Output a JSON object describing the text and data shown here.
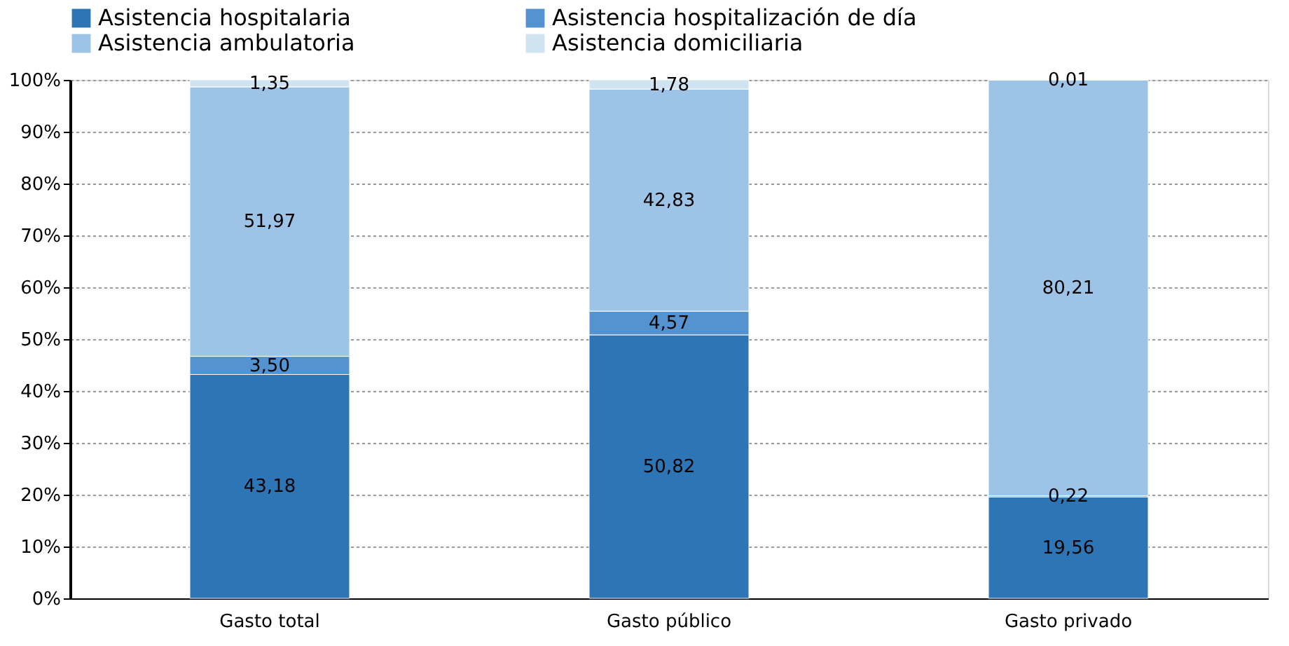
{
  "chart_data": {
    "type": "bar",
    "stacked": true,
    "categories": [
      "Gasto total",
      "Gasto público",
      "Gasto privado"
    ],
    "series": [
      {
        "name": "Asistencia hospitalaria",
        "color": "#2e75b6",
        "values": [
          43.18,
          50.82,
          19.56
        ],
        "value_labels": [
          "43,18",
          "50,82",
          "19,56"
        ]
      },
      {
        "name": "Asistencia hospitalización de día",
        "color": "#5593d0",
        "values": [
          3.5,
          4.57,
          0.22
        ],
        "value_labels": [
          "3,50",
          "4,57",
          "0,22"
        ]
      },
      {
        "name": "Asistencia ambulatoria",
        "color": "#9dc3e6",
        "values": [
          51.97,
          42.83,
          80.21
        ],
        "value_labels": [
          "51,97",
          "42,83",
          "80,21"
        ]
      },
      {
        "name": "Asistencia domiciliaria",
        "color": "#cfe3f1",
        "values": [
          1.35,
          1.78,
          0.01
        ],
        "value_labels": [
          "1,35",
          "1,78",
          "0,01"
        ]
      }
    ],
    "ylim": [
      0,
      100
    ],
    "yticks": [
      {
        "value": 0,
        "label": "0%"
      },
      {
        "value": 10,
        "label": "10%"
      },
      {
        "value": 20,
        "label": "20%"
      },
      {
        "value": 30,
        "label": "30%"
      },
      {
        "value": 40,
        "label": "40%"
      },
      {
        "value": 50,
        "label": "50%"
      },
      {
        "value": 60,
        "label": "60%"
      },
      {
        "value": 70,
        "label": "70%"
      },
      {
        "value": 80,
        "label": "80%"
      },
      {
        "value": 90,
        "label": "90%"
      },
      {
        "value": 100,
        "label": "100%"
      }
    ],
    "grid": "y",
    "legend": "top"
  }
}
